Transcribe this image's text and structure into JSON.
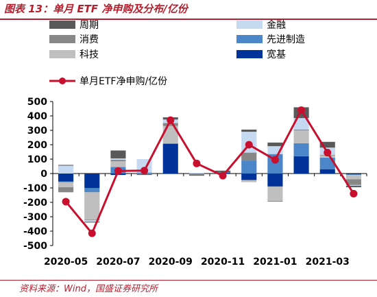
{
  "figure": {
    "title": "图表 13：单月 ETF 净申购及分布/亿份",
    "source": "资料来源：Wind，国盛证券研究所"
  },
  "colors": {
    "周期": "#595959",
    "消费": "#878787",
    "科技": "#bfbfbf",
    "金融": "#c5d9f1",
    "先进制造": "#4a86c8",
    "宽基": "#003399",
    "line": "#c8102e",
    "brand": "#b5202f"
  },
  "chart_data": {
    "type": "bar",
    "stacked": true,
    "title": "",
    "xlabel": "",
    "ylabel": "",
    "ylim": [
      -500,
      500
    ],
    "yticks": [
      500,
      400,
      300,
      200,
      100,
      0,
      -100,
      -200,
      -300,
      -400,
      -500
    ],
    "categories": [
      "2020-05",
      "2020-06",
      "2020-07",
      "2020-08",
      "2020-09",
      "2020-10",
      "2020-11",
      "2020-12",
      "2021-01",
      "2021-02",
      "2021-03",
      "2021-04"
    ],
    "xtick_labels": [
      "2020-05",
      "2020-07",
      "2020-09",
      "2020-11",
      "2021-01",
      "2021-03"
    ],
    "legend": [
      {
        "name": "周期",
        "kind": "bar"
      },
      {
        "name": "金融",
        "kind": "bar"
      },
      {
        "name": "消费",
        "kind": "bar"
      },
      {
        "name": "先进制造",
        "kind": "bar"
      },
      {
        "name": "科技",
        "kind": "bar"
      },
      {
        "name": "宽基",
        "kind": "bar"
      },
      {
        "name": "单月ETF净申购/亿份",
        "kind": "line"
      }
    ],
    "series": [
      {
        "name": "宽基",
        "values": [
          -55,
          -100,
          -10,
          0,
          205,
          0,
          5,
          -45,
          -90,
          120,
          30,
          -5
        ]
      },
      {
        "name": "先进制造",
        "values": [
          -5,
          -30,
          45,
          5,
          5,
          -5,
          5,
          90,
          135,
          90,
          80,
          -5
        ]
      },
      {
        "name": "科技",
        "values": [
          -35,
          -190,
          40,
          5,
          120,
          0,
          0,
          -15,
          -100,
          90,
          15,
          -30
        ]
      },
      {
        "name": "消费",
        "values": [
          -35,
          -5,
          10,
          -5,
          20,
          -5,
          0,
          55,
          -5,
          5,
          5,
          -40
        ]
      },
      {
        "name": "金融",
        "values": [
          55,
          -10,
          10,
          90,
          25,
          5,
          0,
          145,
          55,
          80,
          50,
          -5
        ]
      },
      {
        "name": "周期",
        "values": [
          5,
          -5,
          55,
          -5,
          15,
          -5,
          10,
          15,
          25,
          75,
          40,
          -10
        ]
      }
    ],
    "line": {
      "name": "单月ETF净申购/亿份",
      "values": [
        -195,
        -415,
        18,
        20,
        370,
        70,
        -15,
        200,
        95,
        440,
        145,
        -140
      ]
    }
  }
}
